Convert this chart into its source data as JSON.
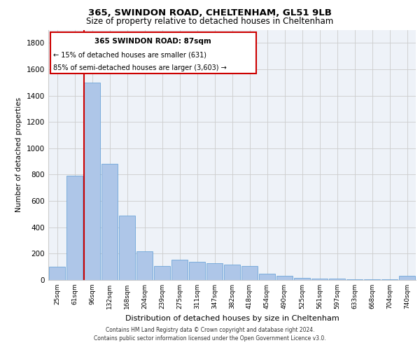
{
  "title": "365, SWINDON ROAD, CHELTENHAM, GL51 9LB",
  "subtitle": "Size of property relative to detached houses in Cheltenham",
  "xlabel": "Distribution of detached houses by size in Cheltenham",
  "ylabel": "Number of detached properties",
  "categories": [
    "25sqm",
    "61sqm",
    "96sqm",
    "132sqm",
    "168sqm",
    "204sqm",
    "239sqm",
    "275sqm",
    "311sqm",
    "347sqm",
    "382sqm",
    "418sqm",
    "454sqm",
    "490sqm",
    "525sqm",
    "561sqm",
    "597sqm",
    "633sqm",
    "668sqm",
    "704sqm",
    "740sqm"
  ],
  "values": [
    100,
    790,
    1500,
    880,
    490,
    220,
    105,
    155,
    140,
    125,
    115,
    105,
    50,
    30,
    15,
    10,
    8,
    5,
    4,
    3,
    30
  ],
  "bar_color": "#aec6e8",
  "bar_edge_color": "#5b9bd5",
  "grid_color": "#cccccc",
  "background_color": "#eef2f8",
  "annotation_box_color": "#ffffff",
  "annotation_border_color": "#cc0000",
  "vline_color": "#cc0000",
  "vline_x_index": 1.52,
  "annotation_text_line1": "365 SWINDON ROAD: 87sqm",
  "annotation_text_line2": "← 15% of detached houses are smaller (631)",
  "annotation_text_line3": "85% of semi-detached houses are larger (3,603) →",
  "ylim": [
    0,
    1900
  ],
  "yticks": [
    0,
    200,
    400,
    600,
    800,
    1000,
    1200,
    1400,
    1600,
    1800
  ],
  "footer_line1": "Contains HM Land Registry data © Crown copyright and database right 2024.",
  "footer_line2": "Contains public sector information licensed under the Open Government Licence v3.0."
}
